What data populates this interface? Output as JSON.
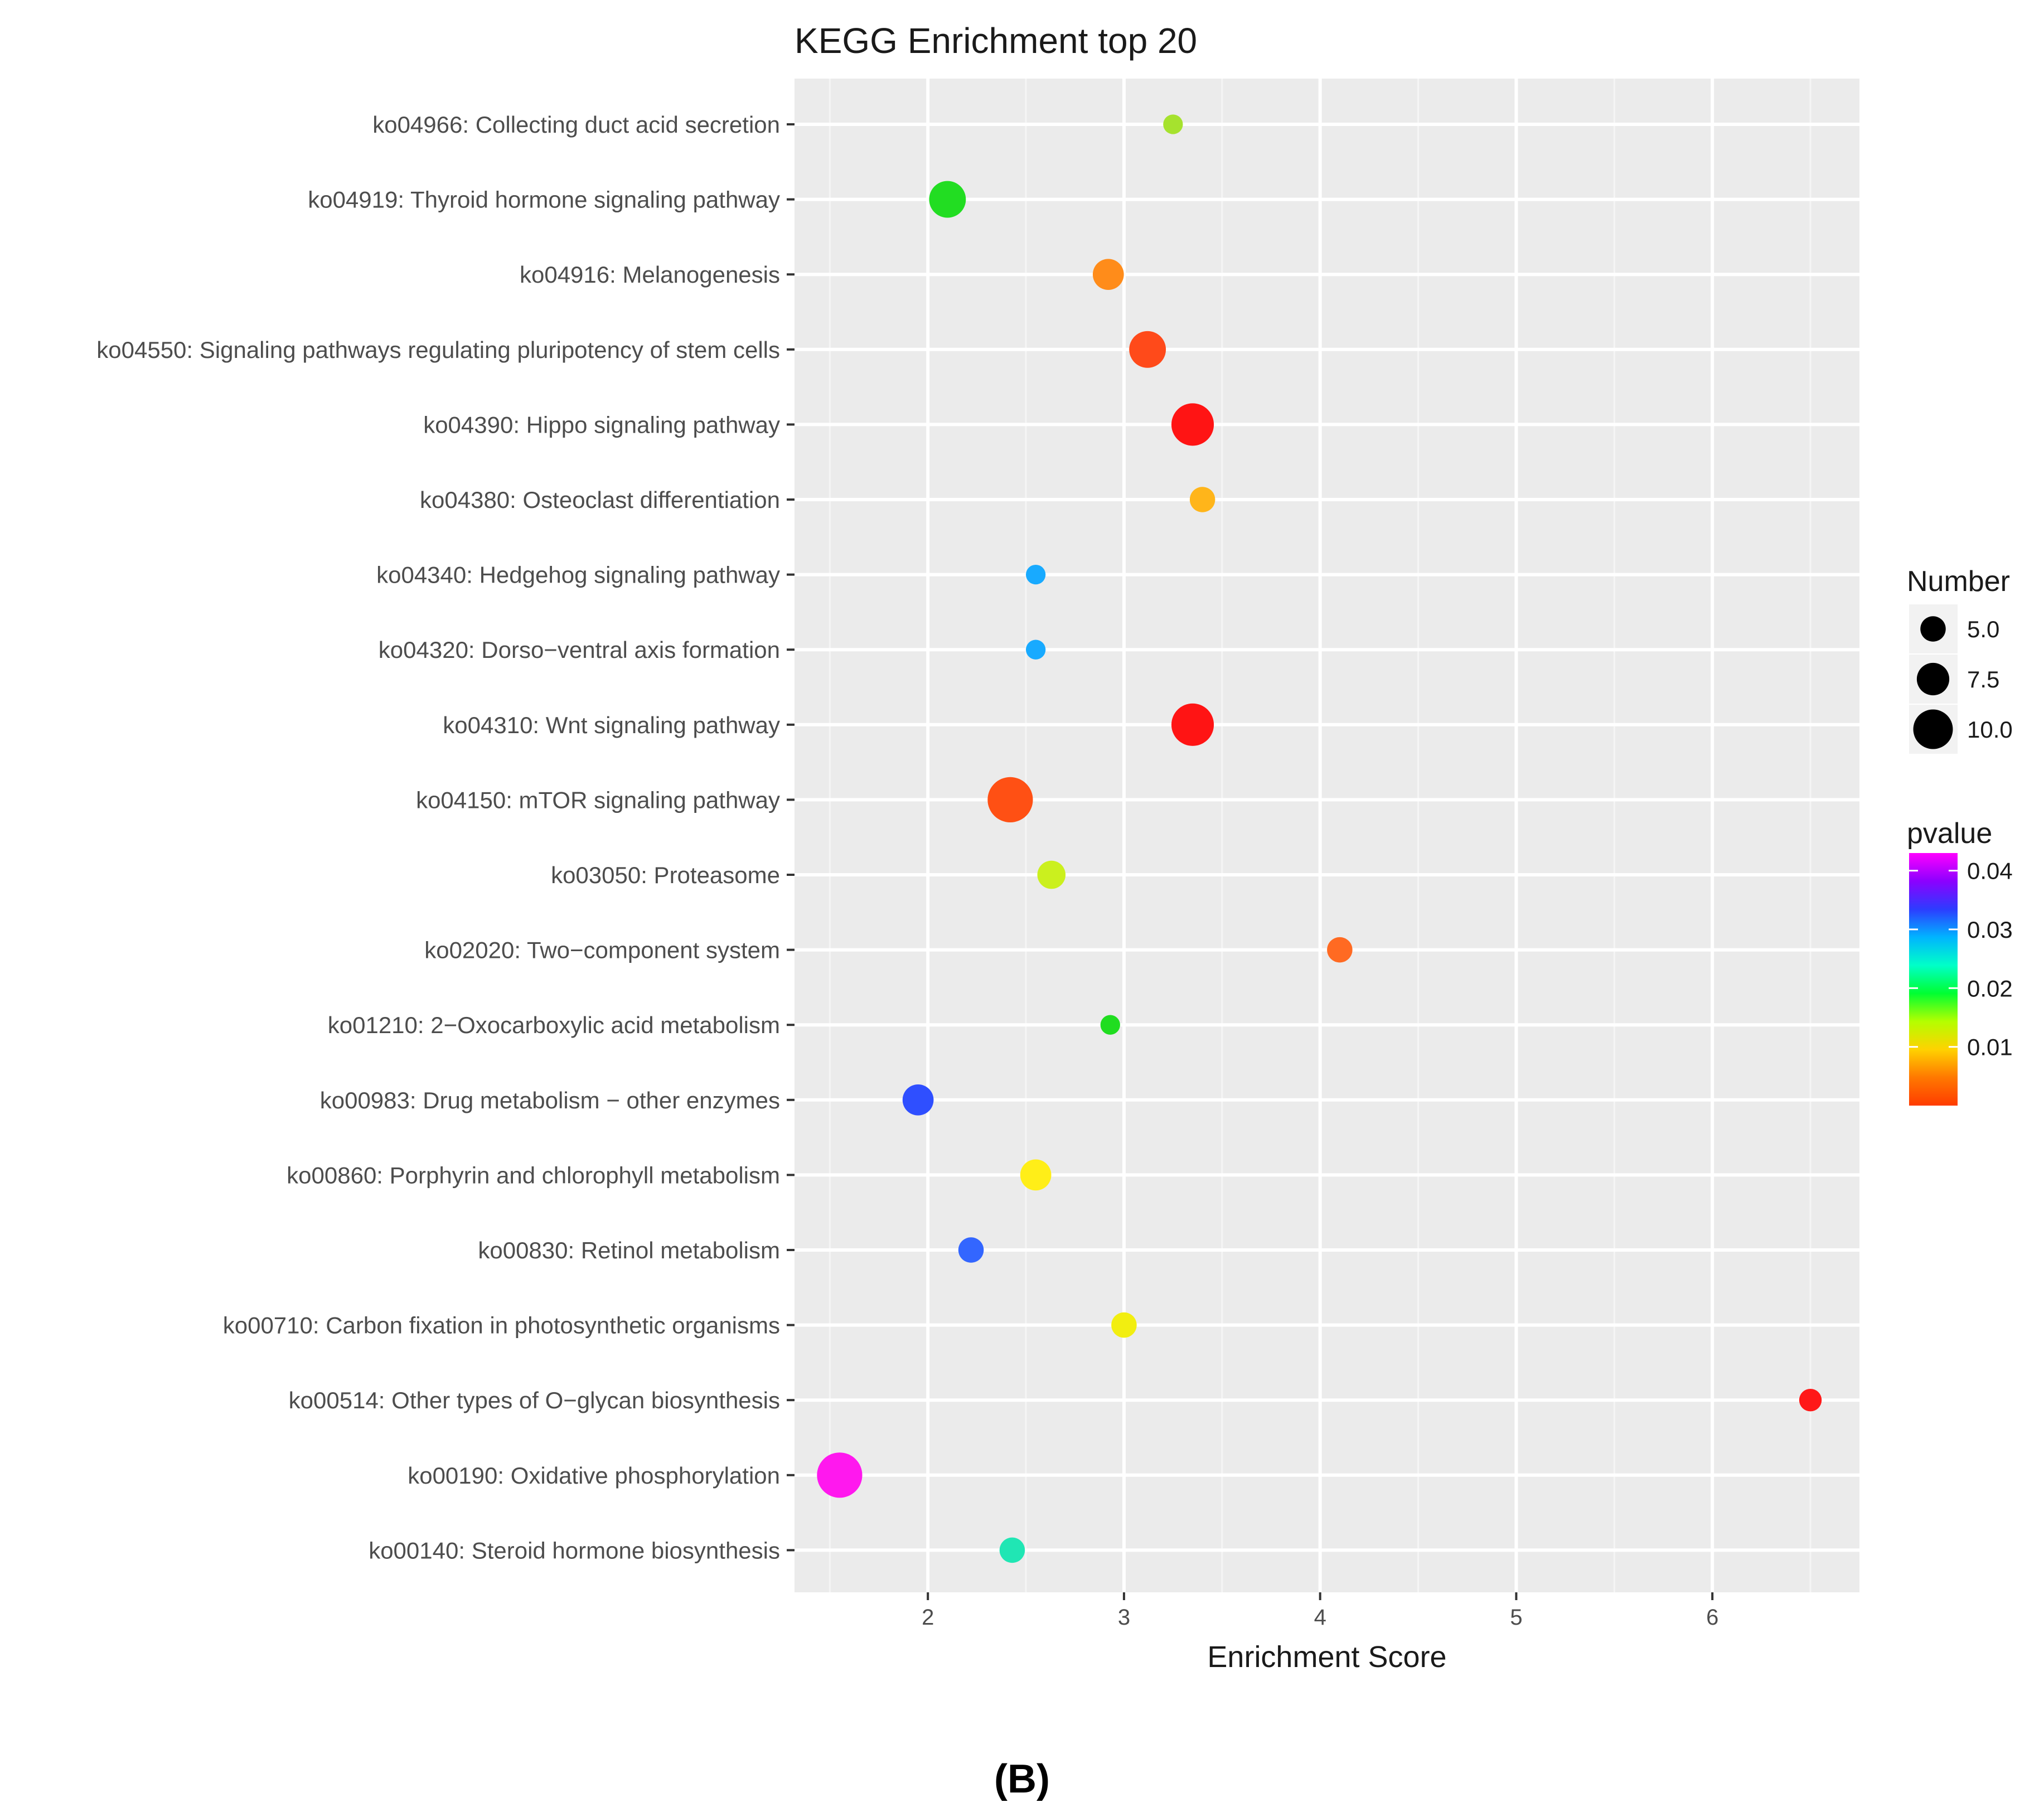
{
  "chart_data": {
    "type": "scatter",
    "title": "KEGG Enrichment top 20",
    "xlabel": "Enrichment Score",
    "ylabel": "",
    "xlim": [
      1.32,
      6.75
    ],
    "xticks": [
      2,
      3,
      4,
      5,
      6
    ],
    "grid": true,
    "categories": [
      "ko04966: Collecting duct acid secretion",
      "ko04919: Thyroid hormone signaling pathway",
      "ko04916: Melanogenesis",
      "ko04550: Signaling pathways regulating pluripotency of stem cells",
      "ko04390: Hippo signaling pathway",
      "ko04380: Osteoclast differentiation",
      "ko04340: Hedgehog signaling pathway",
      "ko04320: Dorso−ventral axis formation",
      "ko04310: Wnt signaling pathway",
      "ko04150: mTOR signaling pathway",
      "ko03050: Proteasome",
      "ko02020: Two−component system",
      "ko01210: 2−Oxocarboxylic acid metabolism",
      "ko00983: Drug metabolism − other enzymes",
      "ko00860: Porphyrin and chlorophyll metabolism",
      "ko00830: Retinol metabolism",
      "ko00710: Carbon fixation in photosynthetic organisms",
      "ko00514: Other types of O−glycan biosynthesis",
      "ko00190: Oxidative phosphorylation",
      "ko00140: Steroid hormone biosynthesis"
    ],
    "points": [
      {
        "x": 3.25,
        "number": 3,
        "pvalue": 0.011,
        "color": "#a6e22e"
      },
      {
        "x": 2.1,
        "number": 9,
        "pvalue": 0.018,
        "color": "#22dd22"
      },
      {
        "x": 2.92,
        "number": 7,
        "pvalue": 0.0035,
        "color": "#ff8c1a"
      },
      {
        "x": 3.12,
        "number": 9,
        "pvalue": 0.0015,
        "color": "#ff4a1a"
      },
      {
        "x": 3.35,
        "number": 11,
        "pvalue": 0.0002,
        "color": "#ff1414"
      },
      {
        "x": 3.4,
        "number": 5,
        "pvalue": 0.006,
        "color": "#ffb51a"
      },
      {
        "x": 2.55,
        "number": 3,
        "pvalue": 0.028,
        "color": "#18aaff"
      },
      {
        "x": 2.55,
        "number": 3,
        "pvalue": 0.028,
        "color": "#18aaff"
      },
      {
        "x": 3.35,
        "number": 11,
        "pvalue": 0.0002,
        "color": "#ff1414"
      },
      {
        "x": 2.42,
        "number": 12,
        "pvalue": 0.0015,
        "color": "#ff5014"
      },
      {
        "x": 2.63,
        "number": 6,
        "pvalue": 0.011,
        "color": "#cbf01e"
      },
      {
        "x": 4.1,
        "number": 5,
        "pvalue": 0.0025,
        "color": "#ff6a22"
      },
      {
        "x": 2.93,
        "number": 3,
        "pvalue": 0.019,
        "color": "#20dd20"
      },
      {
        "x": 1.95,
        "number": 7,
        "pvalue": 0.034,
        "color": "#2f4fff"
      },
      {
        "x": 2.55,
        "number": 7,
        "pvalue": 0.008,
        "color": "#ffee18"
      },
      {
        "x": 2.22,
        "number": 5,
        "pvalue": 0.032,
        "color": "#3366ff"
      },
      {
        "x": 3.0,
        "number": 5,
        "pvalue": 0.008,
        "color": "#f2ee10"
      },
      {
        "x": 6.5,
        "number": 4,
        "pvalue": 0.0001,
        "color": "#ff1818"
      },
      {
        "x": 1.55,
        "number": 12,
        "pvalue": 0.042,
        "color": "#ff18ee"
      },
      {
        "x": 2.43,
        "number": 5,
        "pvalue": 0.022,
        "color": "#20e6b4"
      }
    ],
    "size_legend": {
      "title": "Number",
      "values": [
        "5.0",
        "7.5",
        "10.0"
      ]
    },
    "color_legend": {
      "title": "pvalue",
      "ticks": [
        {
          "label": "0.04",
          "value": 0.04
        },
        {
          "label": "0.03",
          "value": 0.03
        },
        {
          "label": "0.02",
          "value": 0.02
        },
        {
          "label": "0.01",
          "value": 0.01
        }
      ],
      "range": [
        0.0,
        0.043
      ],
      "gradient_top_to_bottom": [
        "#ff00ff",
        "#8c00ff",
        "#2d3cff",
        "#00b4ff",
        "#00ffc8",
        "#00ff32",
        "#b4ff00",
        "#ffd200",
        "#ff7800",
        "#ff3c00"
      ]
    }
  },
  "caption": "(B)"
}
